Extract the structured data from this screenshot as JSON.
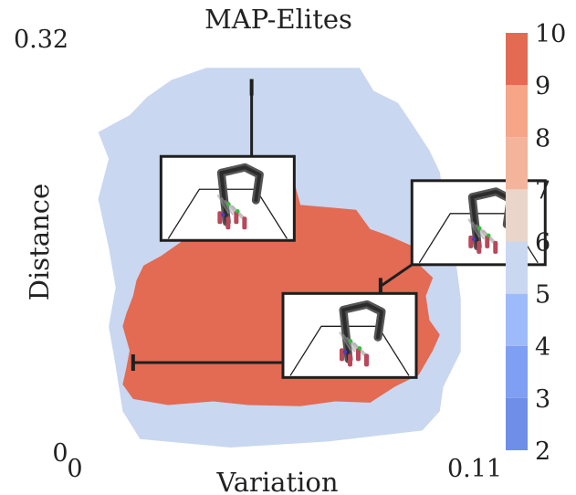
{
  "chart_data": {
    "type": "heatmap",
    "title": "MAP-Elites",
    "xlabel": "Variation",
    "ylabel": "Distance",
    "xlim": [
      0,
      0.11
    ],
    "ylim": [
      0,
      0.32
    ],
    "x_tick_labels": [
      "0",
      "0.11"
    ],
    "y_tick_labels": [
      "0",
      "0.32"
    ],
    "colorbar": {
      "min": 2,
      "max": 10,
      "ticks": [
        "2",
        "3",
        "4",
        "5",
        "6",
        "7",
        "8",
        "9",
        "10"
      ],
      "bands": [
        {
          "from": 2,
          "to": 3,
          "color": "#6f8ee8"
        },
        {
          "from": 3,
          "to": 4,
          "color": "#7f9ff3"
        },
        {
          "from": 4,
          "to": 5,
          "color": "#9dbbfa"
        },
        {
          "from": 5,
          "to": 6,
          "color": "#c9d7f0"
        },
        {
          "from": 6,
          "to": 7,
          "color": "#e9d5ca"
        },
        {
          "from": 7,
          "to": 8,
          "color": "#f3b49b"
        },
        {
          "from": 8,
          "to": 9,
          "color": "#f6a587"
        },
        {
          "from": 9,
          "to": 10,
          "color": "#e36a53"
        }
      ]
    },
    "grid": false,
    "regions": [
      {
        "name": "outer-region",
        "score": 5.5,
        "outline": [
          [
            0.033,
            0.313
          ],
          [
            0.077,
            0.313
          ],
          [
            0.081,
            0.294
          ],
          [
            0.088,
            0.284
          ],
          [
            0.092,
            0.267
          ],
          [
            0.097,
            0.245
          ],
          [
            0.1,
            0.227
          ],
          [
            0.101,
            0.207
          ],
          [
            0.104,
            0.167
          ],
          [
            0.106,
            0.123
          ],
          [
            0.106,
            0.079
          ],
          [
            0.101,
            0.05
          ],
          [
            0.1,
            0.03
          ],
          [
            0.095,
            0.014
          ],
          [
            0.068,
            0.005
          ],
          [
            0.04,
            0.0
          ],
          [
            0.014,
            0.007
          ],
          [
            0.009,
            0.03
          ],
          [
            0.007,
            0.067
          ],
          [
            0.005,
            0.1
          ],
          [
            0.007,
            0.132
          ],
          [
            0.005,
            0.165
          ],
          [
            0.002,
            0.205
          ],
          [
            0.005,
            0.238
          ],
          [
            0.002,
            0.26
          ],
          [
            0.011,
            0.274
          ],
          [
            0.016,
            0.289
          ],
          [
            0.023,
            0.303
          ]
        ]
      },
      {
        "name": "elite-region",
        "score": 9.5,
        "outline": [
          [
            0.047,
            0.232
          ],
          [
            0.057,
            0.232
          ],
          [
            0.06,
            0.2
          ],
          [
            0.068,
            0.198
          ],
          [
            0.076,
            0.196
          ],
          [
            0.08,
            0.18
          ],
          [
            0.085,
            0.175
          ],
          [
            0.093,
            0.165
          ],
          [
            0.094,
            0.151
          ],
          [
            0.098,
            0.14
          ],
          [
            0.096,
            0.125
          ],
          [
            0.097,
            0.105
          ],
          [
            0.1,
            0.093
          ],
          [
            0.098,
            0.08
          ],
          [
            0.094,
            0.06
          ],
          [
            0.087,
            0.05
          ],
          [
            0.08,
            0.037
          ],
          [
            0.07,
            0.038
          ],
          [
            0.06,
            0.034
          ],
          [
            0.045,
            0.035
          ],
          [
            0.035,
            0.038
          ],
          [
            0.022,
            0.035
          ],
          [
            0.012,
            0.04
          ],
          [
            0.009,
            0.052
          ],
          [
            0.01,
            0.065
          ],
          [
            0.011,
            0.08
          ],
          [
            0.009,
            0.1
          ],
          [
            0.01,
            0.11
          ],
          [
            0.012,
            0.125
          ],
          [
            0.013,
            0.138
          ],
          [
            0.015,
            0.15
          ],
          [
            0.02,
            0.158
          ],
          [
            0.026,
            0.17
          ],
          [
            0.033,
            0.18
          ],
          [
            0.038,
            0.198
          ],
          [
            0.045,
            0.205
          ]
        ]
      }
    ],
    "annotations": [
      {
        "name": "annotation-top",
        "point": [
          0.046,
          0.297
        ],
        "inset": [
          0.02,
          0.24
        ]
      },
      {
        "name": "annotation-right",
        "point": [
          0.083,
          0.133
        ],
        "inset": [
          0.092,
          0.22
        ]
      },
      {
        "name": "annotation-lower",
        "point": [
          0.012,
          0.07
        ],
        "inset": [
          0.055,
          0.127
        ]
      }
    ]
  }
}
